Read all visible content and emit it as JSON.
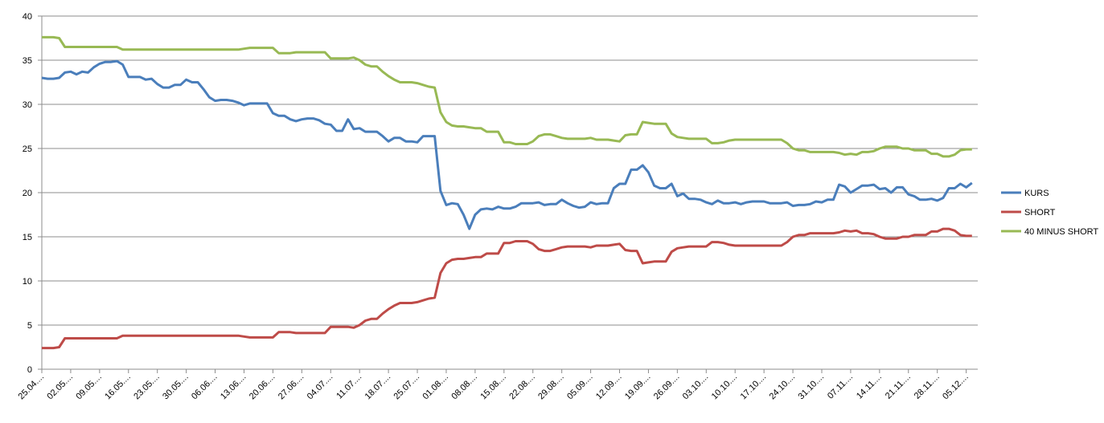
{
  "chart_data": {
    "type": "line",
    "categories": [
      "25.04....",
      null,
      null,
      null,
      null,
      "02.05....",
      null,
      null,
      null,
      null,
      "09.05....",
      null,
      null,
      null,
      null,
      "16.05....",
      null,
      null,
      null,
      null,
      "23.05....",
      null,
      null,
      null,
      null,
      "30.05....",
      null,
      null,
      null,
      null,
      "06.06....",
      null,
      null,
      null,
      null,
      "13.06....",
      null,
      null,
      null,
      null,
      "20.06....",
      null,
      null,
      null,
      null,
      "27.06....",
      null,
      null,
      null,
      null,
      "04.07....",
      null,
      null,
      null,
      null,
      "11.07....",
      null,
      null,
      null,
      null,
      "18.07....",
      null,
      null,
      null,
      null,
      "25.07....",
      null,
      null,
      null,
      null,
      "01.08....",
      null,
      null,
      null,
      null,
      "08.08....",
      null,
      null,
      null,
      null,
      "15.08....",
      null,
      null,
      null,
      null,
      "22.08....",
      null,
      null,
      null,
      null,
      "29.08....",
      null,
      null,
      null,
      null,
      "05.09....",
      null,
      null,
      null,
      null,
      "12.09....",
      null,
      null,
      null,
      null,
      "19.09....",
      null,
      null,
      null,
      null,
      "26.09....",
      null,
      null,
      null,
      null,
      "03.10....",
      null,
      null,
      null,
      null,
      "10.10....",
      null,
      null,
      null,
      null,
      "17.10....",
      null,
      null,
      null,
      null,
      "24.10....",
      null,
      null,
      null,
      null,
      "31.10....",
      null,
      null,
      null,
      null,
      "07.11....",
      null,
      null,
      null,
      null,
      "14.11....",
      null,
      null,
      null,
      null,
      "21.11....",
      null,
      null,
      null,
      null,
      "28.11....",
      null,
      null,
      null,
      null,
      "05.12....",
      null
    ],
    "series": [
      {
        "name": "KURS",
        "color": "#4a7ebb",
        "values": [
          33.0,
          32.9,
          32.9,
          33.0,
          33.6,
          33.7,
          33.4,
          33.7,
          33.6,
          34.2,
          34.6,
          34.8,
          34.8,
          34.9,
          34.5,
          33.1,
          33.1,
          33.1,
          32.8,
          32.9,
          32.3,
          31.9,
          31.9,
          32.2,
          32.2,
          32.8,
          32.5,
          32.5,
          31.7,
          30.8,
          30.4,
          30.5,
          30.5,
          30.4,
          30.2,
          29.9,
          30.1,
          30.1,
          30.1,
          30.1,
          29.0,
          28.7,
          28.7,
          28.3,
          28.1,
          28.3,
          28.4,
          28.4,
          28.2,
          27.8,
          27.7,
          27.0,
          27.0,
          28.3,
          27.2,
          27.3,
          26.9,
          26.9,
          26.9,
          26.4,
          25.8,
          26.2,
          26.2,
          25.8,
          25.8,
          25.7,
          26.4,
          26.4,
          26.4,
          20.2,
          18.6,
          18.8,
          18.7,
          17.5,
          15.9,
          17.5,
          18.1,
          18.2,
          18.1,
          18.4,
          18.2,
          18.2,
          18.4,
          18.8,
          18.8,
          18.8,
          18.9,
          18.6,
          18.7,
          18.7,
          19.2,
          18.8,
          18.5,
          18.3,
          18.4,
          18.9,
          18.7,
          18.8,
          18.8,
          20.5,
          21.0,
          21.0,
          22.6,
          22.6,
          23.1,
          22.3,
          20.8,
          20.5,
          20.5,
          21.0,
          19.6,
          19.9,
          19.3,
          19.3,
          19.2,
          18.9,
          18.7,
          19.1,
          18.8,
          18.8,
          18.9,
          18.7,
          18.9,
          19.0,
          19.0,
          19.0,
          18.8,
          18.8,
          18.8,
          18.9,
          18.5,
          18.6,
          18.6,
          18.7,
          19.0,
          18.9,
          19.2,
          19.2,
          20.9,
          20.7,
          20.0,
          20.4,
          20.8,
          20.8,
          20.9,
          20.4,
          20.5,
          20.0,
          20.6,
          20.6,
          19.8,
          19.6,
          19.2,
          19.2,
          19.3,
          19.1,
          19.4,
          20.5,
          20.5,
          21.0,
          20.6,
          21.1
        ]
      },
      {
        "name": "SHORT",
        "color": "#be4b48",
        "values": [
          2.4,
          2.4,
          2.4,
          2.5,
          3.5,
          3.5,
          3.5,
          3.5,
          3.5,
          3.5,
          3.5,
          3.5,
          3.5,
          3.5,
          3.8,
          3.8,
          3.8,
          3.8,
          3.8,
          3.8,
          3.8,
          3.8,
          3.8,
          3.8,
          3.8,
          3.8,
          3.8,
          3.8,
          3.8,
          3.8,
          3.8,
          3.8,
          3.8,
          3.8,
          3.8,
          3.7,
          3.6,
          3.6,
          3.6,
          3.6,
          3.6,
          4.2,
          4.2,
          4.2,
          4.1,
          4.1,
          4.1,
          4.1,
          4.1,
          4.1,
          4.8,
          4.8,
          4.8,
          4.8,
          4.7,
          5.0,
          5.5,
          5.7,
          5.7,
          6.3,
          6.8,
          7.2,
          7.5,
          7.5,
          7.5,
          7.6,
          7.8,
          8.0,
          8.1,
          10.9,
          12.0,
          12.4,
          12.5,
          12.5,
          12.6,
          12.7,
          12.7,
          13.1,
          13.1,
          13.1,
          14.3,
          14.3,
          14.5,
          14.5,
          14.5,
          14.2,
          13.6,
          13.4,
          13.4,
          13.6,
          13.8,
          13.9,
          13.9,
          13.9,
          13.9,
          13.8,
          14.0,
          14.0,
          14.0,
          14.1,
          14.2,
          13.5,
          13.4,
          13.4,
          12.0,
          12.1,
          12.2,
          12.2,
          12.2,
          13.3,
          13.7,
          13.8,
          13.9,
          13.9,
          13.9,
          13.9,
          14.4,
          14.4,
          14.3,
          14.1,
          14.0,
          14.0,
          14.0,
          14.0,
          14.0,
          14.0,
          14.0,
          14.0,
          14.0,
          14.4,
          15.0,
          15.2,
          15.2,
          15.4,
          15.4,
          15.4,
          15.4,
          15.4,
          15.5,
          15.7,
          15.6,
          15.7,
          15.4,
          15.4,
          15.3,
          15.0,
          14.8,
          14.8,
          14.8,
          15.0,
          15.0,
          15.2,
          15.2,
          15.2,
          15.6,
          15.6,
          15.9,
          15.9,
          15.7,
          15.2,
          15.1,
          15.1
        ]
      },
      {
        "name": "40 MINUS SHORT",
        "color": "#98b954",
        "values": [
          37.6,
          37.6,
          37.6,
          37.5,
          36.5,
          36.5,
          36.5,
          36.5,
          36.5,
          36.5,
          36.5,
          36.5,
          36.5,
          36.5,
          36.2,
          36.2,
          36.2,
          36.2,
          36.2,
          36.2,
          36.2,
          36.2,
          36.2,
          36.2,
          36.2,
          36.2,
          36.2,
          36.2,
          36.2,
          36.2,
          36.2,
          36.2,
          36.2,
          36.2,
          36.2,
          36.3,
          36.4,
          36.4,
          36.4,
          36.4,
          36.4,
          35.8,
          35.8,
          35.8,
          35.9,
          35.9,
          35.9,
          35.9,
          35.9,
          35.9,
          35.2,
          35.2,
          35.2,
          35.2,
          35.3,
          35.0,
          34.5,
          34.3,
          34.3,
          33.7,
          33.2,
          32.8,
          32.5,
          32.5,
          32.5,
          32.4,
          32.2,
          32.0,
          31.9,
          29.1,
          28.0,
          27.6,
          27.5,
          27.5,
          27.4,
          27.3,
          27.3,
          26.9,
          26.9,
          26.9,
          25.7,
          25.7,
          25.5,
          25.5,
          25.5,
          25.8,
          26.4,
          26.6,
          26.6,
          26.4,
          26.2,
          26.1,
          26.1,
          26.1,
          26.1,
          26.2,
          26.0,
          26.0,
          26.0,
          25.9,
          25.8,
          26.5,
          26.6,
          26.6,
          28.0,
          27.9,
          27.8,
          27.8,
          27.8,
          26.7,
          26.3,
          26.2,
          26.1,
          26.1,
          26.1,
          26.1,
          25.6,
          25.6,
          25.7,
          25.9,
          26.0,
          26.0,
          26.0,
          26.0,
          26.0,
          26.0,
          26.0,
          26.0,
          26.0,
          25.6,
          25.0,
          24.8,
          24.8,
          24.6,
          24.6,
          24.6,
          24.6,
          24.6,
          24.5,
          24.3,
          24.4,
          24.3,
          24.6,
          24.6,
          24.7,
          25.0,
          25.2,
          25.2,
          25.2,
          25.0,
          25.0,
          24.8,
          24.8,
          24.8,
          24.4,
          24.4,
          24.1,
          24.1,
          24.3,
          24.8,
          24.9,
          24.9
        ]
      }
    ],
    "ylim": [
      0,
      40
    ],
    "yticks": [
      0,
      5,
      10,
      15,
      20,
      25,
      30,
      35,
      40
    ],
    "grid": true,
    "legend": "right"
  }
}
